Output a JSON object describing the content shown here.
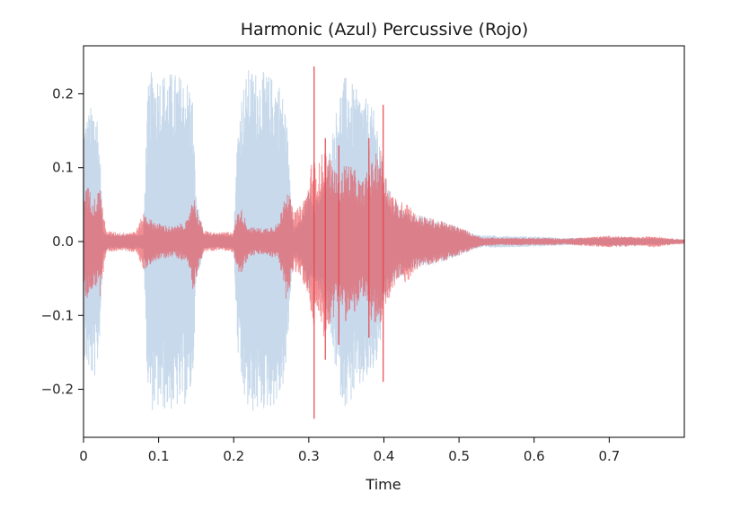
{
  "chart_data": {
    "type": "area",
    "title": "Harmonic (Azul) Percussive (Rojo)",
    "xlabel": "Time",
    "ylabel": "",
    "xlim": [
      0,
      0.8
    ],
    "ylim": [
      -0.265,
      0.265
    ],
    "x_ticks": [
      0,
      0.1,
      0.2,
      0.3,
      0.4,
      0.5,
      0.6,
      0.7
    ],
    "x_tick_labels": [
      "0",
      "0.1",
      "0.2",
      "0.3",
      "0.4",
      "0.5",
      "0.6",
      "0.7"
    ],
    "y_ticks": [
      -0.2,
      -0.1,
      0.0,
      0.1,
      0.2
    ],
    "y_tick_labels": [
      "−0.2",
      "−0.1",
      "0.0",
      "0.1",
      "0.2"
    ],
    "grid": false,
    "series": [
      {
        "color": "#a9c4e0",
        "opacity": 0.65,
        "envelope": {
          "x": [
            0.0,
            0.004,
            0.008,
            0.013,
            0.018,
            0.022,
            0.026,
            0.035,
            0.05,
            0.07,
            0.08,
            0.083,
            0.086,
            0.09,
            0.1,
            0.12,
            0.14,
            0.145,
            0.15,
            0.16,
            0.18,
            0.2,
            0.205,
            0.21,
            0.215,
            0.22,
            0.24,
            0.26,
            0.27,
            0.275,
            0.28,
            0.29,
            0.3,
            0.305,
            0.31,
            0.32,
            0.33,
            0.34,
            0.345,
            0.35,
            0.355,
            0.36,
            0.37,
            0.38,
            0.39,
            0.395,
            0.4,
            0.41,
            0.42,
            0.43,
            0.45,
            0.47,
            0.5,
            0.52,
            0.53,
            0.56,
            0.6,
            0.62,
            0.64,
            0.68,
            0.7,
            0.72,
            0.74,
            0.76,
            0.78,
            0.8
          ],
          "y": [
            0.16,
            0.17,
            0.18,
            0.19,
            0.18,
            0.12,
            0.015,
            0.01,
            0.01,
            0.01,
            0.01,
            0.13,
            0.21,
            0.23,
            0.23,
            0.23,
            0.22,
            0.2,
            0.06,
            0.01,
            0.01,
            0.01,
            0.15,
            0.2,
            0.22,
            0.235,
            0.23,
            0.22,
            0.18,
            0.08,
            0.02,
            0.03,
            0.07,
            0.05,
            0.06,
            0.08,
            0.14,
            0.2,
            0.22,
            0.225,
            0.22,
            0.21,
            0.2,
            0.19,
            0.17,
            0.14,
            0.09,
            0.06,
            0.05,
            0.04,
            0.035,
            0.03,
            0.02,
            0.01,
            0.009,
            0.008,
            0.007,
            0.006,
            0.005,
            0.005,
            0.006,
            0.006,
            0.005,
            0.005,
            0.004,
            0.003
          ]
        }
      },
      {
        "color": "#e8434a",
        "opacity": 0.6,
        "envelope": {
          "x": [
            0.0,
            0.003,
            0.008,
            0.015,
            0.022,
            0.03,
            0.05,
            0.07,
            0.08,
            0.09,
            0.1,
            0.12,
            0.14,
            0.145,
            0.15,
            0.16,
            0.18,
            0.2,
            0.205,
            0.21,
            0.22,
            0.24,
            0.26,
            0.27,
            0.28,
            0.29,
            0.3,
            0.305,
            0.31,
            0.315,
            0.32,
            0.33,
            0.34,
            0.35,
            0.36,
            0.37,
            0.38,
            0.39,
            0.395,
            0.4,
            0.41,
            0.42,
            0.43,
            0.44,
            0.45,
            0.47,
            0.5,
            0.52,
            0.53,
            0.56,
            0.6,
            0.62,
            0.64,
            0.68,
            0.7,
            0.72,
            0.74,
            0.76,
            0.78,
            0.8
          ],
          "y": [
            0.05,
            0.085,
            0.07,
            0.06,
            0.075,
            0.015,
            0.012,
            0.015,
            0.04,
            0.03,
            0.025,
            0.02,
            0.03,
            0.07,
            0.05,
            0.015,
            0.012,
            0.015,
            0.04,
            0.045,
            0.02,
            0.018,
            0.025,
            0.08,
            0.04,
            0.05,
            0.08,
            0.12,
            0.1,
            0.11,
            0.13,
            0.11,
            0.09,
            0.11,
            0.1,
            0.08,
            0.1,
            0.12,
            0.13,
            0.1,
            0.07,
            0.05,
            0.06,
            0.04,
            0.035,
            0.03,
            0.02,
            0.01,
            0.006,
            0.005,
            0.005,
            0.005,
            0.004,
            0.007,
            0.008,
            0.007,
            0.006,
            0.008,
            0.005,
            0.003
          ]
        },
        "spikes": [
          {
            "x": 0.307,
            "y_max": 0.237,
            "y_min": -0.24
          },
          {
            "x": 0.399,
            "y_max": 0.185,
            "y_min": -0.19
          },
          {
            "x": 0.322,
            "y_max": 0.14,
            "y_min": -0.16
          },
          {
            "x": 0.34,
            "y_max": 0.13,
            "y_min": -0.14
          },
          {
            "x": 0.38,
            "y_max": 0.14,
            "y_min": -0.13
          }
        ]
      }
    ]
  }
}
